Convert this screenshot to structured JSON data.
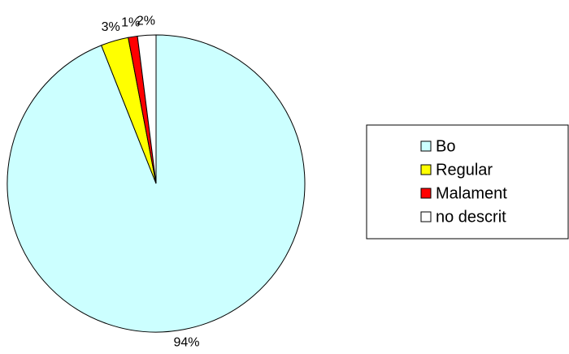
{
  "chart_data": {
    "type": "pie",
    "categories": [
      "Bo",
      "Regular",
      "Malament",
      "no descrit"
    ],
    "values": [
      94,
      3,
      1,
      2
    ],
    "value_labels": [
      "94%",
      "3%",
      "1%",
      "2%"
    ],
    "colors": [
      "#ccffff",
      "#ffff00",
      "#ff0000",
      "#ffffff"
    ],
    "legend": "right"
  }
}
